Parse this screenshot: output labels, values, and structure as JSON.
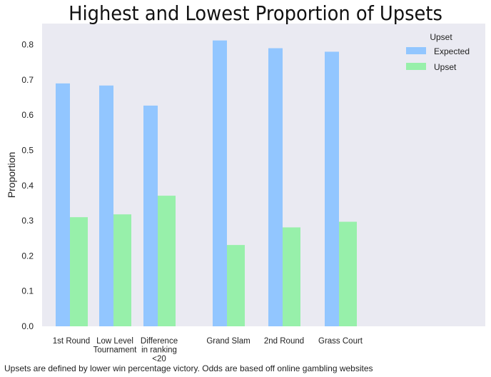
{
  "chart_data": {
    "type": "bar",
    "title": "Highest and Lowest Proportion of Upsets",
    "ylabel": "Proportion",
    "xlabel": "",
    "ylim": [
      0,
      0.86
    ],
    "yticks": [
      "0.0",
      "0.1",
      "0.2",
      "0.3",
      "0.4",
      "0.5",
      "0.6",
      "0.7",
      "0.8"
    ],
    "categories": [
      [
        "1st Round"
      ],
      [
        "Low Level",
        "Tournament"
      ],
      [
        "Difference",
        "in ranking",
        "<20"
      ],
      [
        "Grand Slam"
      ],
      [
        "2nd Round"
      ],
      [
        "Grass Court"
      ]
    ],
    "series": [
      {
        "name": "Expected",
        "values": [
          0.69,
          0.684,
          0.627,
          0.812,
          0.79,
          0.78
        ]
      },
      {
        "name": "Upset",
        "values": [
          0.31,
          0.318,
          0.371,
          0.231,
          0.281,
          0.297
        ]
      }
    ],
    "legend": {
      "title": "Upset",
      "placement": "top-right"
    },
    "grid": false,
    "colors": {
      "Expected": "#92C6FF",
      "Upset": "#97F0AA",
      "plot_bg": "#EAEAF2"
    },
    "footnote": "Upsets are defined by lower win percentage victory. Odds are based off online gambling websites"
  }
}
